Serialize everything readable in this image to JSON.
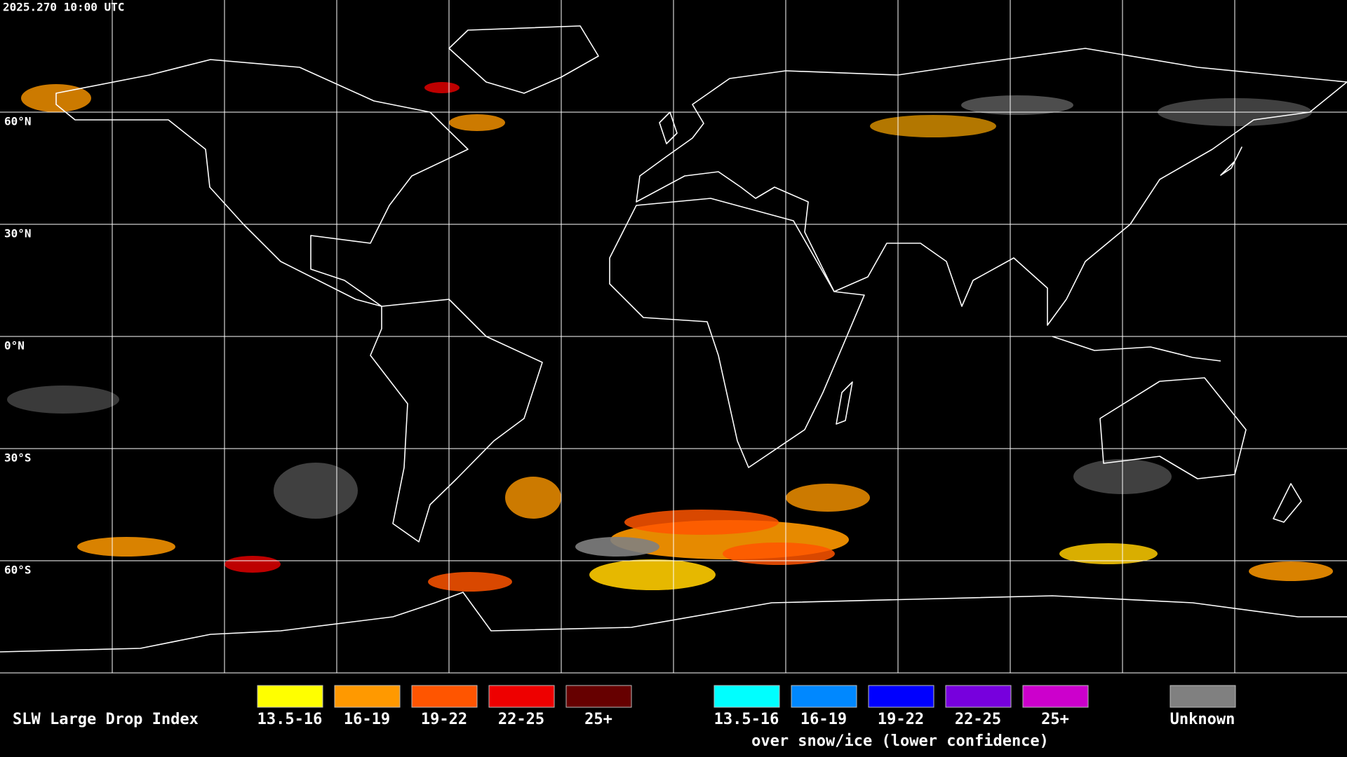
{
  "timestamp": "2025.270 10:00 UTC",
  "latitude_labels": [
    "60°N",
    "30°N",
    "0°N",
    "30°S",
    "60°S"
  ],
  "legend": {
    "title": "SLW Large Drop Index",
    "liquid": [
      {
        "label": "13.5-16",
        "color": "#ffff00"
      },
      {
        "label": "16-19",
        "color": "#ff9900"
      },
      {
        "label": "19-22",
        "color": "#ff5500"
      },
      {
        "label": "22-25",
        "color": "#ee0000"
      },
      {
        "label": "25+",
        "color": "#660000"
      }
    ],
    "snow_ice": [
      {
        "label": "13.5-16",
        "color": "#00ffff"
      },
      {
        "label": "16-19",
        "color": "#0088ff"
      },
      {
        "label": "19-22",
        "color": "#0000ff"
      },
      {
        "label": "22-25",
        "color": "#7700dd"
      },
      {
        "label": "25+",
        "color": "#cc00cc"
      }
    ],
    "snow_ice_caption": "over snow/ice (lower confidence)",
    "unknown": {
      "label": "Unknown",
      "color": "#808080"
    }
  }
}
